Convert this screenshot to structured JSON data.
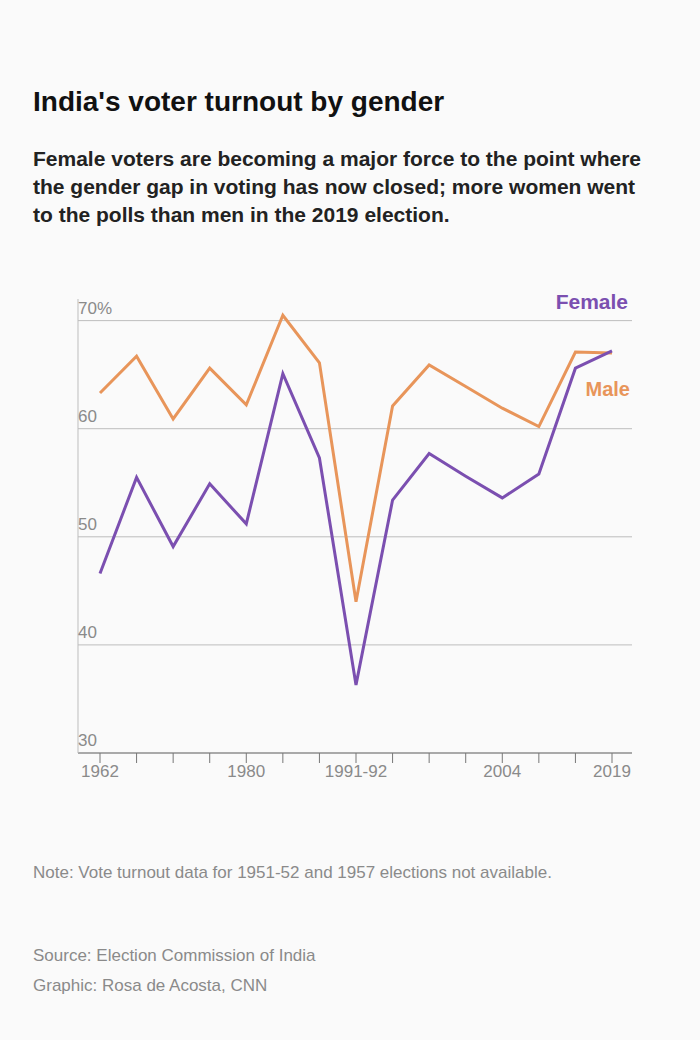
{
  "chart_data": {
    "type": "line",
    "title": "India's voter turnout by gender",
    "subtitle": "Female voters are becoming a major force to the point where the gender gap in voting has now closed; more women went to the polls than men in the 2019 election.",
    "categories": [
      "1962",
      null,
      null,
      null,
      "1980",
      null,
      null,
      "1991-92",
      null,
      null,
      null,
      "2004",
      null,
      null,
      "2019"
    ],
    "series": [
      {
        "name": "Female",
        "color": "#7b4fb0",
        "values": [
          46.6,
          55.5,
          49.1,
          54.9,
          51.2,
          65.1,
          57.3,
          36.3,
          53.4,
          57.7,
          55.6,
          53.6,
          55.8,
          65.6,
          67.2
        ]
      },
      {
        "name": "Male",
        "color": "#e8955a",
        "values": [
          63.3,
          66.7,
          60.9,
          65.6,
          62.2,
          70.5,
          66.1,
          44.0,
          62.1,
          65.9,
          63.9,
          61.9,
          60.2,
          67.1,
          67.0
        ]
      }
    ],
    "ylim": [
      30,
      72
    ],
    "yticks": [
      30,
      40,
      50,
      60,
      {
        "value": 70,
        "label": "70%"
      }
    ],
    "grid": true,
    "note": "Note: Vote turnout data for 1951-52 and 1957 elections not available.",
    "source": "Source: Election Commission of India",
    "credit": "Graphic: Rosa de Acosta, CNN"
  }
}
